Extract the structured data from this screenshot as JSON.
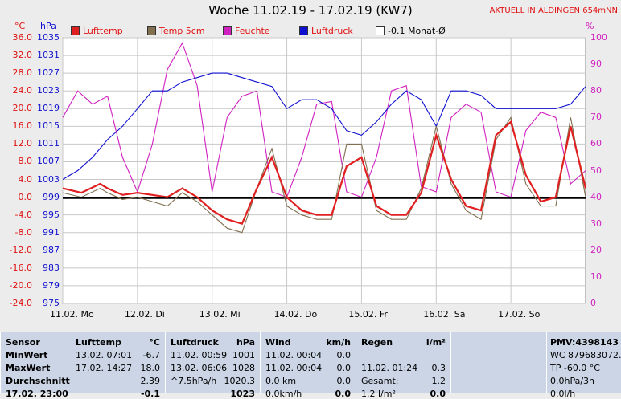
{
  "title": "Woche 11.02.19 - 17.02.19 (KW7)",
  "station": "AKTUELL IN ALDINGEN 654mNN",
  "units": {
    "temp": "°C",
    "press": "hPa",
    "humid": "%"
  },
  "legend": [
    {
      "label": "Lufttemp",
      "color": "#e02020"
    },
    {
      "label": "Temp 5cm",
      "color": "#807050"
    },
    {
      "label": "Feuchte",
      "color": "#d020c0"
    },
    {
      "label": "Luftdruck",
      "color": "#1010d0"
    },
    {
      "label": "-0.1 Monat-Ø",
      "color": "#ffffff"
    }
  ],
  "chart_data": {
    "type": "line",
    "title": "Woche 11.02.19 - 17.02.19 (KW7)",
    "x_ticks": [
      "11.02. Mo",
      "12.02. Di",
      "13.02. Mi",
      "14.02. Do",
      "15.02. Fr",
      "16.02. Sa",
      "17.02. So"
    ],
    "x_range_days": [
      0,
      7
    ],
    "left_axis": {
      "label": "°C",
      "range": [
        -24,
        36
      ],
      "ticks": [
        "36.0",
        "32.0",
        "28.0",
        "24.0",
        "20.0",
        "16.0",
        "12.0",
        "8.0",
        "4.0",
        "0.0",
        "-4.0",
        "-8.0",
        "-12.0",
        "-16.0",
        "-20.0",
        "-24.0"
      ]
    },
    "pressure_axis": {
      "label": "hPa",
      "range": [
        975,
        1035
      ],
      "ticks": [
        "1035",
        "1031",
        "1027",
        "1023",
        "1019",
        "1015",
        "1011",
        "1007",
        "1003",
        "999",
        "995",
        "991",
        "987",
        "983",
        "979",
        "975"
      ]
    },
    "right_axis": {
      "label": "%",
      "range": [
        0,
        100
      ],
      "ticks": [
        "100",
        "90",
        "80",
        "70",
        "60",
        "50",
        "40",
        "30",
        "20",
        "10",
        "0"
      ]
    },
    "monthly_mean_c": -0.1,
    "series": [
      {
        "name": "Lufttemp",
        "color": "#e02020",
        "axis": "temp",
        "x": [
          0,
          0.25,
          0.5,
          0.6,
          0.8,
          1.0,
          1.2,
          1.4,
          1.6,
          1.8,
          2.0,
          2.2,
          2.4,
          2.6,
          2.8,
          3.0,
          3.2,
          3.4,
          3.6,
          3.8,
          4.0,
          4.2,
          4.4,
          4.6,
          4.8,
          5.0,
          5.2,
          5.4,
          5.6,
          5.8,
          6.0,
          6.2,
          6.4,
          6.6,
          6.8,
          7.0
        ],
        "y": [
          2,
          1,
          3,
          2,
          0.5,
          1,
          0.5,
          0,
          2,
          0,
          -3,
          -5,
          -6,
          2,
          9,
          0,
          -3,
          -4,
          -4,
          7,
          9,
          -2,
          -4,
          -4,
          1,
          14,
          4,
          -2,
          -3,
          14,
          17,
          5,
          -1,
          0,
          16,
          2
        ]
      },
      {
        "name": "Temp 5cm",
        "color": "#807050",
        "axis": "temp",
        "x": [
          0,
          0.25,
          0.5,
          0.6,
          0.8,
          1.0,
          1.2,
          1.4,
          1.6,
          1.8,
          2.0,
          2.2,
          2.4,
          2.6,
          2.8,
          3.0,
          3.2,
          3.4,
          3.6,
          3.8,
          4.0,
          4.2,
          4.4,
          4.6,
          4.8,
          5.0,
          5.2,
          5.4,
          5.6,
          5.8,
          6.0,
          6.2,
          6.4,
          6.6,
          6.8,
          7.0
        ],
        "y": [
          1,
          0,
          2,
          1,
          -0.5,
          0,
          -1,
          -2,
          1,
          -1,
          -4,
          -7,
          -8,
          2,
          11,
          -2,
          -4,
          -5,
          -5,
          12,
          12,
          -3,
          -5,
          -5,
          2,
          16,
          3,
          -3,
          -5,
          13,
          18,
          3,
          -2,
          -2,
          18,
          0
        ]
      },
      {
        "name": "Feuchte",
        "color": "#d020c0",
        "axis": "humid",
        "x": [
          0,
          0.2,
          0.4,
          0.6,
          0.8,
          1.0,
          1.2,
          1.4,
          1.6,
          1.8,
          2.0,
          2.2,
          2.4,
          2.6,
          2.8,
          3.0,
          3.2,
          3.4,
          3.6,
          3.8,
          4.0,
          4.2,
          4.4,
          4.6,
          4.8,
          5.0,
          5.2,
          5.4,
          5.6,
          5.8,
          6.0,
          6.2,
          6.4,
          6.6,
          6.8,
          7.0
        ],
        "y": [
          70,
          80,
          75,
          78,
          55,
          42,
          60,
          88,
          98,
          82,
          42,
          70,
          78,
          80,
          42,
          40,
          55,
          75,
          76,
          42,
          40,
          55,
          80,
          82,
          44,
          42,
          70,
          75,
          72,
          42,
          40,
          65,
          72,
          70,
          45,
          50
        ]
      },
      {
        "name": "Luftdruck",
        "color": "#1010d0",
        "axis": "press",
        "x": [
          0,
          0.2,
          0.4,
          0.6,
          0.8,
          1.0,
          1.2,
          1.4,
          1.6,
          1.8,
          2.0,
          2.2,
          2.4,
          2.6,
          2.8,
          3.0,
          3.2,
          3.4,
          3.6,
          3.8,
          4.0,
          4.2,
          4.4,
          4.6,
          4.8,
          5.0,
          5.2,
          5.4,
          5.6,
          5.8,
          6.0,
          6.2,
          6.4,
          6.6,
          6.8,
          7.0
        ],
        "y": [
          1003,
          1005,
          1008,
          1012,
          1015,
          1019,
          1023,
          1023,
          1025,
          1026,
          1027,
          1027,
          1026,
          1025,
          1024,
          1019,
          1021,
          1021,
          1019,
          1014,
          1013,
          1016,
          1020,
          1023,
          1021,
          1015,
          1023,
          1023,
          1022,
          1019,
          1019,
          1019,
          1019,
          1019,
          1020,
          1024
        ]
      }
    ]
  },
  "stats": {
    "sensor": {
      "header": "Sensor",
      "rows": [
        "MinWert",
        "MaxWert",
        "Durchschnitt",
        "17.02. 23:00"
      ]
    },
    "temp": {
      "header": "Lufttemp",
      "unit": "°C",
      "rows": [
        [
          "13.02. 07:01",
          "-6.7"
        ],
        [
          "17.02. 14:27",
          "18.0"
        ],
        [
          "",
          "2.39"
        ],
        [
          "",
          "-0.1"
        ]
      ]
    },
    "press": {
      "header": "Luftdruck",
      "unit": "hPa",
      "rows": [
        [
          "11.02. 00:59",
          "1001"
        ],
        [
          "13.02. 06:06",
          "1028"
        ],
        [
          "^7.5hPa/h",
          "1020.3"
        ],
        [
          "",
          "1023"
        ]
      ]
    },
    "wind": {
      "header": "Wind",
      "unit": "km/h",
      "rows": [
        [
          "11.02. 00:04",
          "0.0"
        ],
        [
          "11.02. 00:04",
          "0.0"
        ],
        [
          "0.0 km",
          "0.0"
        ],
        [
          "0.0km/h",
          "0.0"
        ]
      ]
    },
    "rain": {
      "header": "Regen",
      "unit": "l/m²",
      "rows": [
        [
          "",
          ""
        ],
        [
          "11.02. 01:24",
          "0.3"
        ],
        [
          "Gesamt:",
          "1.2"
        ],
        [
          "1.2 l/m²",
          "0.0"
        ]
      ]
    },
    "pmv": {
      "header": "PMV:4398143",
      "rows": [
        "WC 879683072.0",
        "TP -60.0 °C",
        "0.0hPa/3h",
        "0.0l/h"
      ]
    }
  }
}
